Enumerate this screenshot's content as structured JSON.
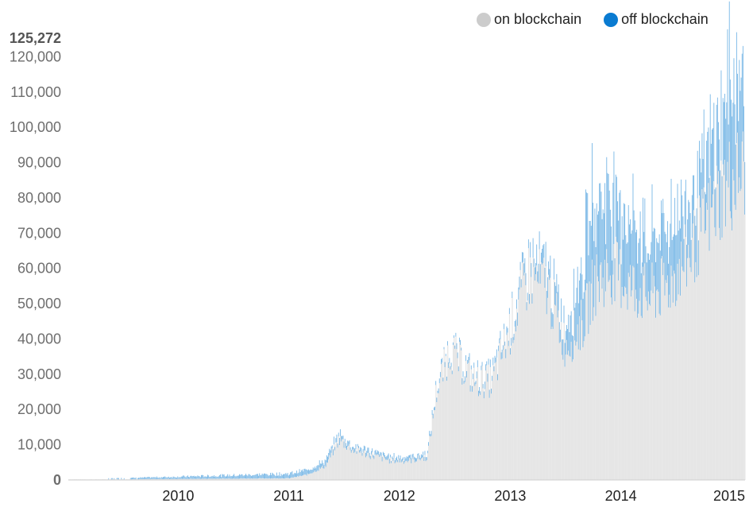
{
  "chart_data": {
    "type": "bar",
    "title": "",
    "xlabel": "",
    "ylabel": "",
    "x_ticks": [
      "2010",
      "2011",
      "2012",
      "2013",
      "2014",
      "2015"
    ],
    "y_ticks": [
      "0",
      "10,000",
      "20,000",
      "30,000",
      "40,000",
      "50,000",
      "60,000",
      "70,000",
      "80,000",
      "90,000",
      "100,000",
      "110,000",
      "120,000"
    ],
    "y_max_label": "125,272",
    "ylim": [
      0,
      125272
    ],
    "xlim": [
      "2009-01-03",
      "2015-02-15"
    ],
    "grid": false,
    "legend_position": "top-right",
    "series": [
      {
        "name": "on blockchain",
        "color": "#e8e8e8",
        "points": [
          {
            "x": "2009-01-03",
            "y": 200
          },
          {
            "x": "2009-07-01",
            "y": 200
          },
          {
            "x": "2010-01-01",
            "y": 300
          },
          {
            "x": "2010-07-01",
            "y": 400
          },
          {
            "x": "2011-01-01",
            "y": 500
          },
          {
            "x": "2011-03-01",
            "y": 1500
          },
          {
            "x": "2011-05-01",
            "y": 4000
          },
          {
            "x": "2011-06-15",
            "y": 11500
          },
          {
            "x": "2011-08-01",
            "y": 8500
          },
          {
            "x": "2011-10-01",
            "y": 7000
          },
          {
            "x": "2011-12-01",
            "y": 5500
          },
          {
            "x": "2012-02-01",
            "y": 5500
          },
          {
            "x": "2012-04-01",
            "y": 6500
          },
          {
            "x": "2012-05-01",
            "y": 25000
          },
          {
            "x": "2012-06-15",
            "y": 37000
          },
          {
            "x": "2012-09-01",
            "y": 28000
          },
          {
            "x": "2012-11-01",
            "y": 28000
          },
          {
            "x": "2013-01-01",
            "y": 43000
          },
          {
            "x": "2013-03-01",
            "y": 58000
          },
          {
            "x": "2013-05-01",
            "y": 55000
          },
          {
            "x": "2013-07-01",
            "y": 38000
          },
          {
            "x": "2013-09-01",
            "y": 45000
          },
          {
            "x": "2013-10-01",
            "y": 55000
          },
          {
            "x": "2013-12-01",
            "y": 60000
          },
          {
            "x": "2014-02-01",
            "y": 55000
          },
          {
            "x": "2014-04-01",
            "y": 52000
          },
          {
            "x": "2014-06-01",
            "y": 55000
          },
          {
            "x": "2014-08-01",
            "y": 62000
          },
          {
            "x": "2014-10-01",
            "y": 72000
          },
          {
            "x": "2014-12-01",
            "y": 82000
          },
          {
            "x": "2015-02-15",
            "y": 88000
          }
        ]
      },
      {
        "name": "off blockchain",
        "color": "#0a7bd1",
        "points": [
          {
            "x": "2009-01-03",
            "y": 0
          },
          {
            "x": "2011-06-15",
            "y": 1500
          },
          {
            "x": "2011-08-01",
            "y": 1000
          },
          {
            "x": "2012-06-01",
            "y": 1000
          },
          {
            "x": "2013-01-01",
            "y": 2000
          },
          {
            "x": "2013-05-01",
            "y": 5000
          },
          {
            "x": "2013-07-01",
            "y": 5000
          },
          {
            "x": "2013-10-01",
            "y": 25000
          },
          {
            "x": "2013-12-01",
            "y": 20000
          },
          {
            "x": "2014-02-01",
            "y": 18000
          },
          {
            "x": "2014-04-01",
            "y": 15000
          },
          {
            "x": "2014-06-01",
            "y": 17000
          },
          {
            "x": "2014-08-01",
            "y": 15000
          },
          {
            "x": "2014-10-01",
            "y": 15000
          },
          {
            "x": "2014-12-01",
            "y": 20000
          },
          {
            "x": "2015-01-01",
            "y": 30000
          },
          {
            "x": "2015-02-15",
            "y": 22000
          }
        ]
      }
    ]
  },
  "legend": {
    "items": [
      {
        "label": "on blockchain",
        "color": "#cccccc"
      },
      {
        "label": "off blockchain",
        "color": "#0a7bd1"
      }
    ]
  }
}
